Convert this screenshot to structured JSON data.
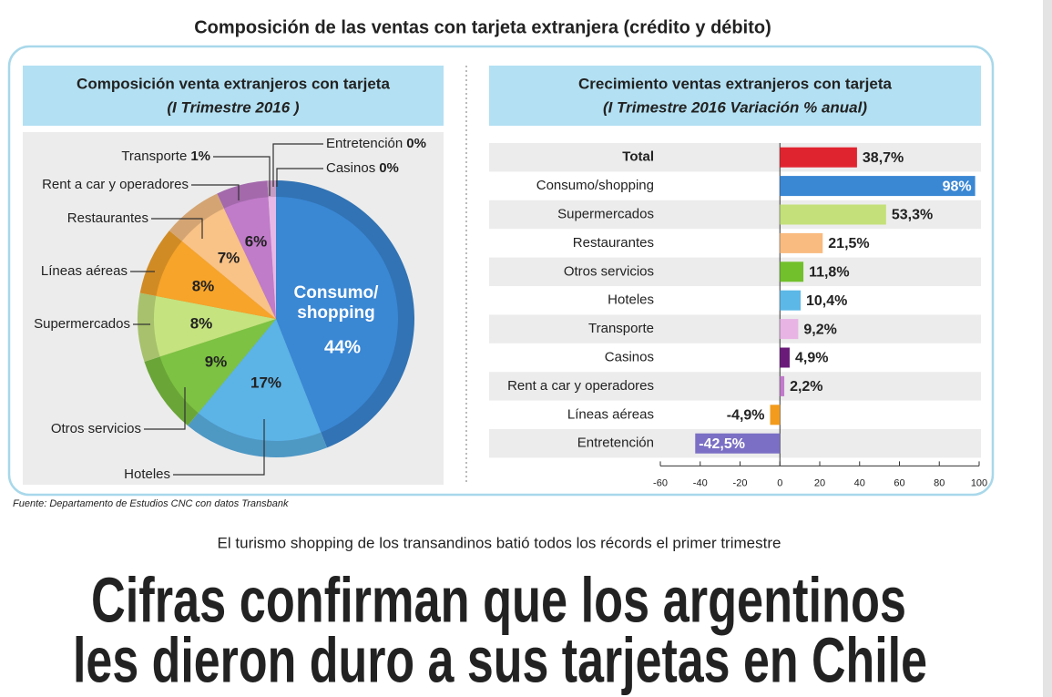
{
  "header": {
    "title": "Composición de las ventas con tarjeta extranjera (crédito y débito)"
  },
  "chart_data": [
    {
      "type": "pie",
      "title": "Composición venta extranjeros con tarjeta",
      "subtitle": "(I Trimestre 2016 )",
      "categories": [
        "Consumo/ shopping",
        "Hoteles",
        "Otros servicios",
        "Supermercados",
        "Líneas aéreas",
        "Restaurantes",
        "Rent a car y operadores",
        "Transporte",
        "Entretención",
        "Casinos"
      ],
      "values": [
        44,
        17,
        9,
        8,
        8,
        7,
        6,
        1,
        0,
        0
      ],
      "value_labels": [
        "44%",
        "17%",
        "9%",
        "8%",
        "8%",
        "7%",
        "6%",
        "1%",
        "0%",
        "0%"
      ],
      "colors": [
        "#3a87d4",
        "#5cb3e6",
        "#7dc242",
        "#c5e37f",
        "#f6a42a",
        "#f9c287",
        "#c07bc9",
        "#e6b8e6",
        "#7b3f98",
        "#aaaaaa"
      ]
    },
    {
      "type": "bar",
      "orientation": "horizontal",
      "title": "Crecimiento ventas extranjeros con tarjeta",
      "subtitle": "(I Trimestre 2016 Variación % anual)",
      "categories": [
        "Total",
        "Consumo/shopping",
        "Supermercados",
        "Restaurantes",
        "Otros servicios",
        "Hoteles",
        "Transporte",
        "Casinos",
        "Rent a car y operadores",
        "Líneas aéreas",
        "Entretención"
      ],
      "values": [
        38.7,
        98,
        53.3,
        21.5,
        11.8,
        10.4,
        9.2,
        4.9,
        2.2,
        -4.9,
        -42.5
      ],
      "value_labels": [
        "38,7%",
        "98%",
        "53,3%",
        "21,5%",
        "11,8%",
        "10,4%",
        "9,2%",
        "4,9%",
        "2,2%",
        "-4,9%",
        "-42,5%"
      ],
      "colors": [
        "#e0242f",
        "#3a87d4",
        "#c3e07a",
        "#f9bb80",
        "#72c02c",
        "#5cb8e6",
        "#e8b4e4",
        "#6a1b7a",
        "#c07bc9",
        "#f29b1c",
        "#7a6fc4"
      ],
      "xlim": [
        -60,
        100
      ],
      "xticks": [
        -60,
        -40,
        -20,
        0,
        20,
        40,
        60,
        80,
        100
      ],
      "grid": false
    }
  ],
  "source": "Fuente: Departamento de Estudios CNC con datos Transbank",
  "article": {
    "kicker": "El turismo shopping de los transandinos batió todos los récords el primer trimestre",
    "headline": [
      "Cifras confirman que los argentinos",
      "les dieron duro a sus tarjetas en Chile"
    ]
  }
}
